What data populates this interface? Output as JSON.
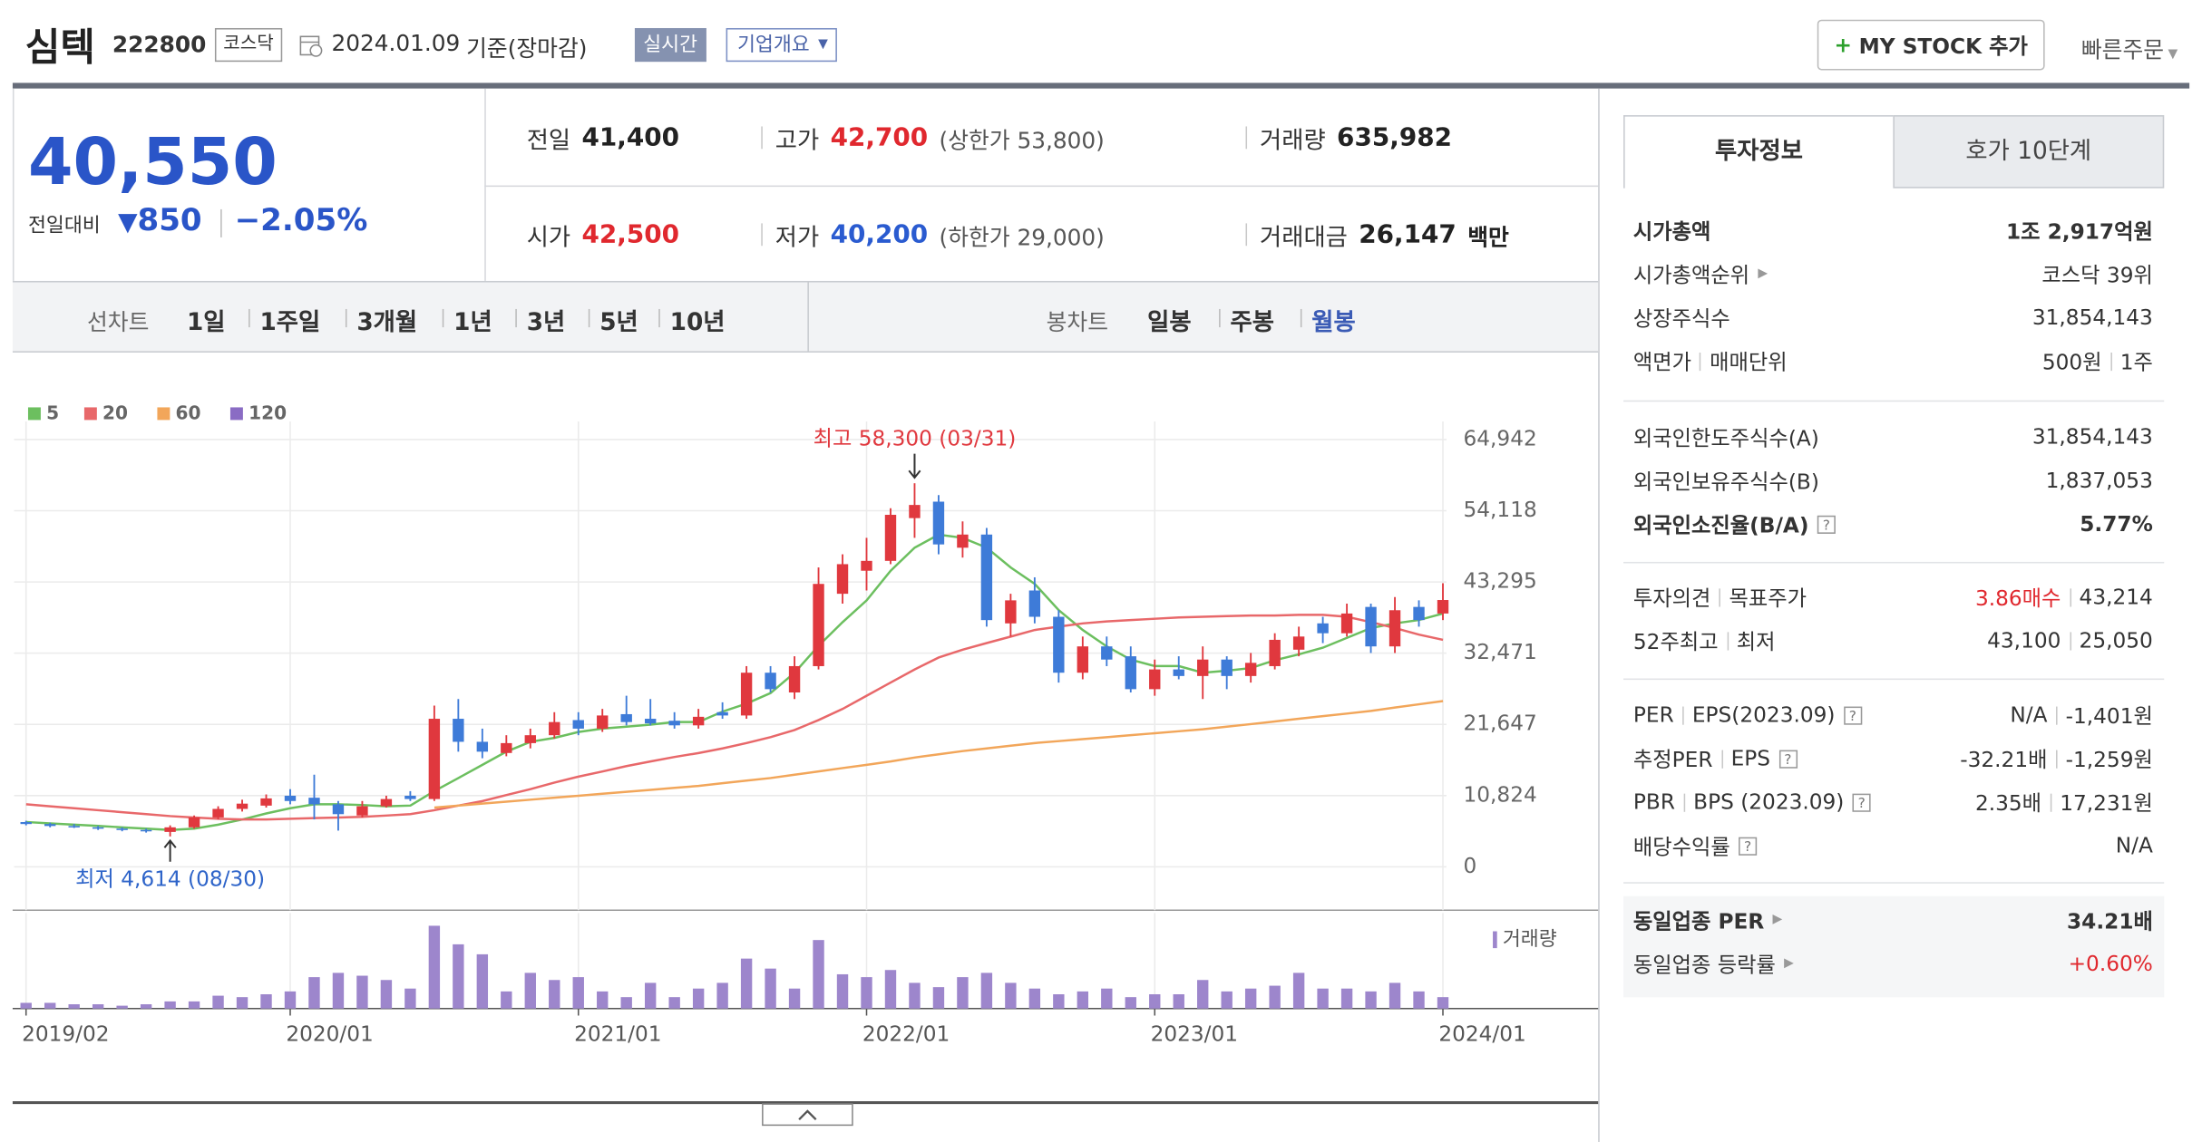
{
  "header": {
    "name": "심텍",
    "code": "222800",
    "market": "코스닥",
    "date": "2024.01.09",
    "basis": "기준(장마감)",
    "realtime": "실시간",
    "company": "기업개요",
    "mystock": "MY STOCK 추가",
    "quick_order": "빠른주문"
  },
  "price": {
    "current": "40,550",
    "change_label": "전일대비",
    "change": "850",
    "rate": "−2.05%"
  },
  "quotes": [
    [
      {
        "label": "전일",
        "value": "41,400"
      },
      {
        "label": "고가",
        "value": "42,700",
        "note": "(상한가 53,800)",
        "color": "#e0282e"
      },
      {
        "label": "거래량",
        "value": "635,982"
      }
    ],
    [
      {
        "label": "시가",
        "value": "42,500",
        "color": "#e0282e"
      },
      {
        "label": "저가",
        "value": "40,200",
        "note": "(하한가 29,000)",
        "color": "#2a5bd0"
      },
      {
        "label": "거래대금",
        "value": "26,147",
        "unit": "백만"
      }
    ]
  ],
  "periods": {
    "line_label": "선차트",
    "line": [
      "1일",
      "1주일",
      "3개월",
      "1년",
      "3년",
      "5년",
      "10년"
    ],
    "candle_label": "봉차트",
    "candle": [
      "일봉",
      "주봉",
      "월봉"
    ]
  },
  "right_panel": {
    "tabs": [
      "투자정보",
      "호가 10단계"
    ],
    "sections": [
      [
        {
          "label": "시가총액",
          "value": "1조 2,917억원",
          "bold": true
        },
        {
          "label": "시가총액순위",
          "arrow": true,
          "value": "코스닥 39위"
        },
        {
          "label": "상장주식수",
          "value": "31,854,143"
        },
        {
          "label": "액면가",
          "label2": "매매단위",
          "value": "500원",
          "value2": "1주"
        }
      ],
      [
        {
          "label": "외국인한도주식수(A)",
          "value": "31,854,143"
        },
        {
          "label": "외국인보유주식수(B)",
          "value": "1,837,053"
        },
        {
          "label": "외국인소진율(B/A)",
          "help": true,
          "value": "5.77%",
          "bold": true
        }
      ],
      [
        {
          "label": "투자의견",
          "label2": "목표주가",
          "value": "3.86매수",
          "color": "#e0282e",
          "value2": "43,214"
        },
        {
          "label": "52주최고",
          "label2": "최저",
          "value": "43,100",
          "value2": "25,050"
        }
      ],
      [
        {
          "label": "PER",
          "label2": "EPS(2023.09)",
          "help": true,
          "value": "N/A",
          "value2": "-1,401원"
        },
        {
          "label": "추정PER",
          "label2": "EPS",
          "help": true,
          "value": "-32.21배",
          "value2": "-1,259원"
        },
        {
          "label": "PBR",
          "label2": "BPS (2023.09)",
          "help": true,
          "value": "2.35배",
          "value2": "17,231원"
        },
        {
          "label": "배당수익률",
          "help": true,
          "value": "N/A"
        }
      ],
      [
        {
          "label": "동일업종 PER",
          "arrow": true,
          "value": "34.21배",
          "bold": true
        },
        {
          "label": "동일업종 등락률",
          "arrow": true,
          "value": "+0.60%",
          "color": "#e0282e"
        }
      ]
    ]
  },
  "chart_data": {
    "type": "candlestick",
    "categories": [
      "2019/02",
      null,
      null,
      null,
      null,
      null,
      null,
      null,
      null,
      null,
      null,
      "2020/01",
      null,
      null,
      null,
      null,
      null,
      null,
      null,
      null,
      null,
      null,
      null,
      "2021/01",
      null,
      null,
      null,
      null,
      null,
      null,
      null,
      null,
      null,
      null,
      null,
      "2022/01",
      null,
      null,
      null,
      null,
      null,
      null,
      null,
      null,
      null,
      null,
      null,
      "2023/01",
      null,
      null,
      null,
      null,
      null,
      null,
      null,
      null,
      null,
      null,
      null,
      "2024/01"
    ],
    "candles": {
      "open": [
        6800,
        6500,
        6200,
        6000,
        5800,
        5600,
        5300,
        6000,
        7500,
        8800,
        9300,
        10800,
        10500,
        9500,
        7800,
        9200,
        10800,
        10300,
        22500,
        19000,
        17300,
        18800,
        20000,
        22300,
        21000,
        23200,
        22500,
        22200,
        21500,
        23500,
        23000,
        29500,
        26500,
        30500,
        41500,
        45000,
        46500,
        53000,
        55500,
        48500,
        50500,
        37000,
        42000,
        38000,
        29500,
        33500,
        32000,
        27000,
        30000,
        29000,
        31500,
        29000,
        30500,
        33000,
        37000,
        35500,
        39500,
        33500,
        39500,
        38500
      ],
      "high": [
        7000,
        6700,
        6500,
        6200,
        6000,
        5800,
        6300,
        7800,
        9200,
        10200,
        11000,
        11800,
        14000,
        10000,
        10000,
        10800,
        11500,
        24500,
        25500,
        21000,
        20000,
        21000,
        23500,
        23500,
        24000,
        26000,
        25500,
        23500,
        24000,
        25000,
        30500,
        30500,
        32000,
        45500,
        47500,
        50000,
        54500,
        58300,
        56500,
        52500,
        51500,
        41500,
        44000,
        39000,
        35000,
        35000,
        33500,
        31500,
        32000,
        33500,
        32000,
        32500,
        35500,
        36500,
        38000,
        40000,
        40000,
        41000,
        40500,
        43100
      ],
      "low": [
        6300,
        6000,
        5900,
        5600,
        5400,
        5200,
        4614,
        5800,
        7200,
        8400,
        9000,
        9500,
        7200,
        5500,
        7500,
        9000,
        10000,
        10000,
        17500,
        16500,
        16800,
        18000,
        19500,
        20000,
        20500,
        21500,
        21500,
        21000,
        21000,
        22500,
        22500,
        26500,
        25500,
        30000,
        40000,
        42000,
        46000,
        50000,
        47500,
        47000,
        36500,
        35000,
        37000,
        28000,
        28500,
        30500,
        26500,
        26000,
        28500,
        25500,
        27000,
        28000,
        30000,
        32000,
        34000,
        35000,
        32500,
        32500,
        36500,
        37500
      ],
      "close": [
        6500,
        6200,
        6000,
        5800,
        5600,
        5400,
        6000,
        7500,
        8800,
        9600,
        10400,
        10000,
        9500,
        8000,
        9200,
        10300,
        10300,
        22500,
        19000,
        17500,
        18800,
        20000,
        22000,
        21000,
        23000,
        22000,
        21800,
        21500,
        22800,
        23000,
        29500,
        27000,
        30500,
        43000,
        46000,
        46500,
        53500,
        55000,
        49000,
        50500,
        37500,
        40500,
        38000,
        29500,
        33500,
        31500,
        27000,
        30000,
        29000,
        31500,
        29000,
        31000,
        34500,
        35000,
        35500,
        38500,
        33500,
        39000,
        37500,
        40550
      ]
    },
    "up_color": "#e0383e",
    "down_color": "#3e7bd8",
    "series": [
      {
        "name": "5",
        "color": "#6cbf5f",
        "values": [
          6800,
          6600,
          6400,
          6200,
          6000,
          5800,
          5600,
          5800,
          6400,
          7200,
          8100,
          8900,
          9500,
          9500,
          9400,
          9200,
          9300,
          11500,
          13500,
          15500,
          17500,
          19000,
          19600,
          20500,
          21000,
          21300,
          21600,
          22000,
          22000,
          23600,
          24800,
          26400,
          29500,
          33600,
          37200,
          40500,
          45000,
          48500,
          50500,
          50000,
          48500,
          45500,
          43000,
          39000,
          36000,
          33500,
          31500,
          30500,
          30500,
          29500,
          29800,
          30200,
          31400,
          32300,
          33300,
          34800,
          36300,
          37000,
          37500,
          38500
        ]
      },
      {
        "name": "20",
        "color": "#e8686a",
        "values": [
          9500,
          9200,
          8900,
          8600,
          8300,
          8000,
          7700,
          7500,
          7300,
          7200,
          7200,
          7300,
          7400,
          7500,
          7600,
          7800,
          8000,
          8600,
          9300,
          10000,
          10900,
          11800,
          12800,
          13700,
          14500,
          15300,
          16000,
          16700,
          17300,
          18000,
          18800,
          19700,
          20800,
          22300,
          24000,
          26000,
          28000,
          30000,
          31800,
          33000,
          34000,
          35000,
          36000,
          36500,
          37000,
          37300,
          37500,
          37700,
          37900,
          38000,
          38100,
          38200,
          38200,
          38300,
          38300,
          38000,
          37200,
          36300,
          35300,
          34500
        ]
      },
      {
        "name": "60",
        "color": "#f2a65a",
        "values": [
          null,
          null,
          null,
          null,
          null,
          null,
          null,
          null,
          null,
          null,
          null,
          null,
          null,
          null,
          null,
          null,
          null,
          9000,
          9300,
          9600,
          9900,
          10200,
          10500,
          10800,
          11100,
          11400,
          11700,
          12000,
          12300,
          12700,
          13100,
          13500,
          14000,
          14500,
          15000,
          15500,
          16000,
          16600,
          17100,
          17600,
          18000,
          18400,
          18800,
          19100,
          19400,
          19700,
          20000,
          20300,
          20600,
          20900,
          21300,
          21700,
          22100,
          22500,
          22900,
          23300,
          23700,
          24200,
          24700,
          25200
        ]
      },
      {
        "name": "120",
        "color": "#8a6cc4",
        "values": [
          null,
          null,
          null,
          null,
          null,
          null,
          null,
          null,
          null,
          null,
          null,
          null,
          null,
          null,
          null,
          null,
          null,
          null,
          null,
          null,
          null,
          null,
          null,
          null,
          null,
          null,
          null,
          null,
          null,
          null,
          null,
          null,
          null,
          null,
          null,
          null,
          null,
          null,
          null,
          null,
          null,
          null,
          null,
          null,
          null,
          null,
          null,
          null,
          null,
          null,
          null,
          null,
          null,
          null,
          null,
          null,
          null,
          null,
          null,
          null
        ]
      }
    ],
    "ylim": [
      -6600,
      67700
    ],
    "yticks": [
      0,
      {
        "value": 10824,
        "label": "10,824"
      },
      {
        "value": 21647,
        "label": "21,647"
      },
      {
        "value": 32471,
        "label": "32,471"
      },
      {
        "value": 43295,
        "label": "43,295"
      },
      {
        "value": 54118,
        "label": "54,118"
      },
      {
        "value": 64942,
        "label": "64,942"
      }
    ],
    "grid": true,
    "annotations": {
      "high": "최고 58,300 (03/31)",
      "low": "최저 4,614 (08/30)"
    },
    "volume": {
      "label": "거래량",
      "color": "#9d86cc",
      "ylim": [
        0,
        62
      ],
      "values": [
        4,
        4,
        3,
        3,
        2,
        3,
        5,
        5,
        9,
        8,
        10,
        12,
        22,
        25,
        23,
        20,
        14,
        58,
        45,
        38,
        12,
        25,
        20,
        22,
        12,
        8,
        18,
        8,
        14,
        18,
        35,
        28,
        14,
        48,
        24,
        22,
        27,
        18,
        15,
        22,
        25,
        18,
        14,
        10,
        12,
        14,
        8,
        10,
        10,
        20,
        12,
        14,
        16,
        25,
        14,
        14,
        12,
        18,
        12,
        8
      ]
    }
  }
}
